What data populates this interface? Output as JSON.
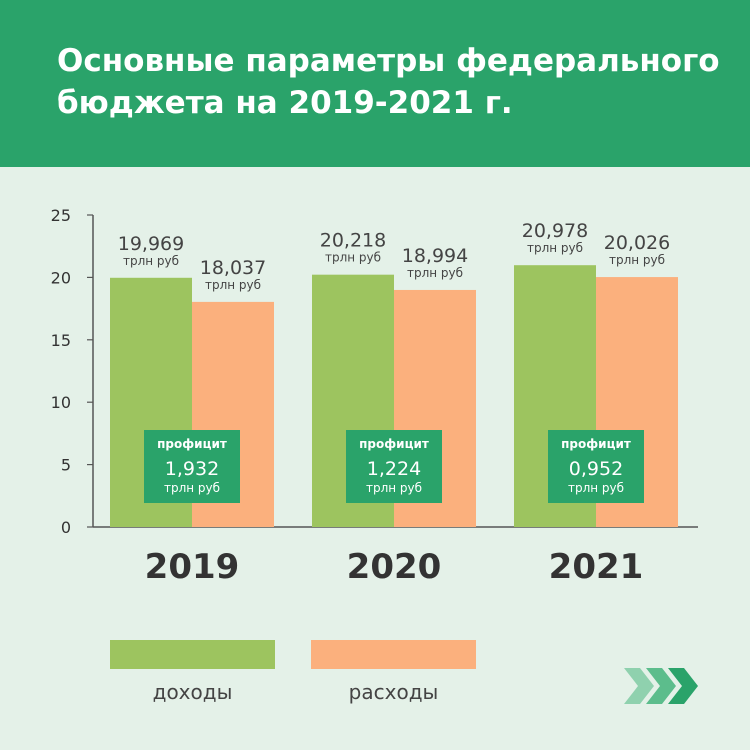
{
  "title": "Основные параметры федерального бюджета на 2019-2021 г.",
  "colors": {
    "header": "#2aa36a",
    "background": "#e4f1e8",
    "income": "#9dc45f",
    "expenses": "#fbb07d",
    "badge": "#2aa36a"
  },
  "legend": {
    "income": "доходы",
    "expenses": "расходы"
  },
  "surplus_label": "профицит",
  "unit": "трлн руб",
  "chart_data": {
    "type": "bar",
    "categories": [
      "2019",
      "2020",
      "2021"
    ],
    "series": [
      {
        "name": "доходы",
        "values": [
          19.969,
          20.218,
          20.978
        ],
        "labels": [
          "19,969",
          "20,218",
          "20,978"
        ]
      },
      {
        "name": "расходы",
        "values": [
          18.037,
          18.994,
          20.026
        ],
        "labels": [
          "18,037",
          "18,994",
          "20,026"
        ]
      }
    ],
    "surplus": {
      "label": "профицит",
      "values": [
        1.932,
        1.224,
        0.952
      ],
      "labels": [
        "1,932",
        "1,224",
        "0,952"
      ]
    },
    "unit": "трлн руб",
    "yticks": [
      0,
      5,
      10,
      15,
      20,
      25
    ],
    "ylim": [
      0,
      25
    ],
    "title": "Основные параметры федерального бюджета на 2019-2021 г.",
    "legend": "bottom"
  },
  "icons": {
    "arrows": "chevron-arrows-icon"
  }
}
